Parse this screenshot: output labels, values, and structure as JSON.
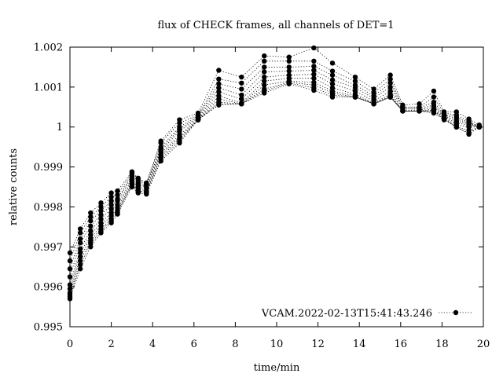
{
  "chart_data": {
    "type": "line",
    "title": "flux of CHECK frames, all channels of DET=1",
    "xlabel": "time/min",
    "ylabel": "relative counts",
    "xlim": [
      0,
      20
    ],
    "ylim": [
      0.995,
      1.002
    ],
    "x_ticks": [
      "0",
      "2",
      "4",
      "6",
      "8",
      "10",
      "12",
      "14",
      "16",
      "18",
      "20"
    ],
    "y_ticks": [
      "0.995",
      "0.996",
      "0.997",
      "0.998",
      "0.999",
      "1",
      "1.001",
      "1.002"
    ],
    "grid": false,
    "legend_position": "bottom-right",
    "line_style": "dotted with filled circle markers",
    "color": "#000000",
    "legend": [
      "VCAM.2022-02-13T15:41:43.246"
    ],
    "x": [
      0,
      0.5,
      1.0,
      1.5,
      2.0,
      2.3,
      3.0,
      3.3,
      3.7,
      4.4,
      5.3,
      6.2,
      7.2,
      8.3,
      9.4,
      10.6,
      11.8,
      12.7,
      13.8,
      14.7,
      15.5,
      16.1,
      16.9,
      17.6,
      18.1,
      18.7,
      19.3,
      19.8
    ],
    "series": [
      {
        "values": [
          0.99685,
          0.99745,
          0.99785,
          0.9981,
          0.99835,
          0.9984,
          0.99888,
          0.99872,
          0.9986,
          0.99965,
          1.00018,
          1.00035,
          1.00142,
          1.00125,
          1.00178,
          1.00175,
          1.00198,
          1.0016,
          1.00125,
          1.00095,
          1.0013,
          1.00055,
          1.00058,
          1.0009,
          1.00038,
          1.00038,
          1.0002,
          1.00005
        ]
      },
      {
        "values": [
          0.99665,
          0.99735,
          0.99775,
          0.998,
          0.99825,
          0.9983,
          0.99885,
          0.9987,
          0.99858,
          0.9996,
          1.0001,
          1.0003,
          1.0012,
          1.0011,
          1.00165,
          1.00165,
          1.00165,
          1.0014,
          1.00115,
          1.00085,
          1.0012,
          1.0005,
          1.0005,
          1.00075,
          1.00035,
          1.0003,
          1.00015,
          1.0
        ]
      },
      {
        "values": [
          0.99645,
          0.9972,
          0.99765,
          0.9979,
          0.99815,
          0.9982,
          0.9988,
          0.99865,
          0.99855,
          0.9995,
          1.0,
          1.00028,
          1.00108,
          1.00095,
          1.0015,
          1.0015,
          1.00152,
          1.0013,
          1.00105,
          1.00078,
          1.0011,
          1.00048,
          1.00048,
          1.00062,
          1.00032,
          1.00025,
          1.00012,
          1.0
        ]
      },
      {
        "values": [
          0.99625,
          0.9971,
          0.99752,
          0.9978,
          0.99805,
          0.99815,
          0.99875,
          0.9986,
          0.99852,
          0.99945,
          0.99995,
          1.00025,
          1.00098,
          1.0008,
          1.00138,
          1.0014,
          1.00142,
          1.00118,
          1.00098,
          1.00072,
          1.001,
          1.00045,
          1.00045,
          1.00055,
          1.0003,
          1.0002,
          1.0001,
          1.0
        ]
      },
      {
        "values": [
          0.99605,
          0.99695,
          0.9974,
          0.9977,
          0.99795,
          0.99805,
          0.9987,
          0.99855,
          0.9985,
          0.9994,
          0.9999,
          1.00022,
          1.00088,
          1.0007,
          1.00125,
          1.0013,
          1.00132,
          1.00108,
          1.0009,
          1.00065,
          1.0009,
          1.00042,
          1.00042,
          1.0005,
          1.00028,
          1.00015,
          1.00008,
          1.0
        ]
      },
      {
        "values": [
          0.99595,
          0.99685,
          0.9973,
          0.9976,
          0.99785,
          0.99798,
          0.99865,
          0.9985,
          0.99845,
          0.99935,
          0.9998,
          1.0002,
          1.00078,
          1.0006,
          1.00115,
          1.00122,
          1.00122,
          1.00098,
          1.00082,
          1.0006,
          1.00082,
          1.0004,
          1.0004,
          1.00045,
          1.00026,
          1.0001,
          1.00005,
          1.0
        ]
      },
      {
        "values": [
          0.99585,
          0.99675,
          0.99722,
          0.99752,
          0.99778,
          0.99792,
          0.9986,
          0.99845,
          0.9984,
          0.9993,
          0.99975,
          1.00018,
          1.0007,
          1.00058,
          1.00105,
          1.00115,
          1.00112,
          1.0009,
          1.00078,
          1.00058,
          1.00078,
          1.0004,
          1.0004,
          1.00042,
          1.00024,
          1.00005,
          1.0,
          1.0
        ]
      },
      {
        "values": [
          0.9958,
          0.99665,
          0.99715,
          0.99745,
          0.9977,
          0.99788,
          0.99858,
          0.9984,
          0.99838,
          0.99925,
          0.9997,
          1.00018,
          1.00062,
          1.00058,
          1.00095,
          1.00112,
          1.00105,
          1.00085,
          1.00075,
          1.00058,
          1.00075,
          1.0004,
          1.0004,
          1.0004,
          1.00022,
          1.0,
          0.99992,
          1.0
        ]
      },
      {
        "values": [
          0.99575,
          0.99655,
          0.99708,
          0.9974,
          0.99765,
          0.99785,
          0.99855,
          0.99838,
          0.99835,
          0.9992,
          0.99965,
          1.00018,
          1.00058,
          1.00058,
          1.0009,
          1.0011,
          1.00098,
          1.0008,
          1.00075,
          1.00058,
          1.00075,
          1.0004,
          1.0004,
          1.00038,
          1.0002,
          1.0,
          0.99985,
          1.0
        ]
      },
      {
        "values": [
          0.9957,
          0.99645,
          0.997,
          0.99735,
          0.9976,
          0.99782,
          0.9985,
          0.99835,
          0.99832,
          0.99915,
          0.9996,
          1.00018,
          1.00055,
          1.00058,
          1.00085,
          1.00108,
          1.00092,
          1.00075,
          1.00075,
          1.00058,
          1.00075,
          1.0004,
          1.0004,
          1.00035,
          1.00018,
          1.0,
          0.99982,
          1.0
        ]
      }
    ]
  }
}
